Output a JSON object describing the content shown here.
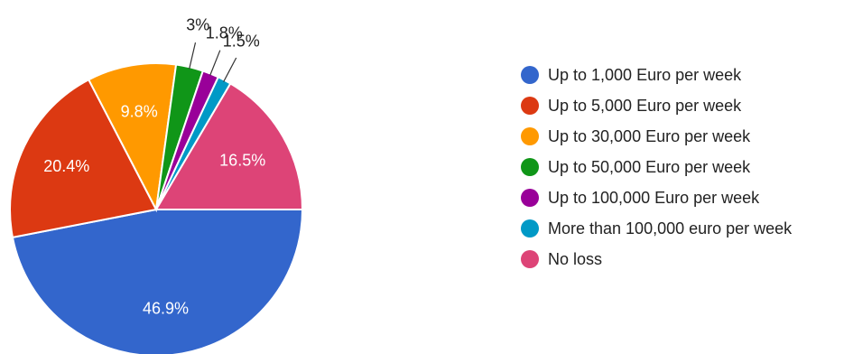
{
  "chart_data": {
    "type": "pie",
    "title": "",
    "slices": [
      {
        "label": "Up to 1,000 Euro per week",
        "value": 46.9,
        "value_label": "46.9%",
        "color": "#3366cc"
      },
      {
        "label": "Up to 5,000 Euro per week",
        "value": 20.4,
        "value_label": "20.4%",
        "color": "#dc3912"
      },
      {
        "label": "Up to 30,000 Euro per week",
        "value": 9.8,
        "value_label": "9.8%",
        "color": "#ff9900"
      },
      {
        "label": "Up to 50,000 Euro per week",
        "value": 3,
        "value_label": "3%",
        "color": "#109618"
      },
      {
        "label": "Up to 100,000 Euro per week",
        "value": 1.8,
        "value_label": "1.8%",
        "color": "#990099"
      },
      {
        "label": "More than 100,000 euro per week",
        "value": 1.5,
        "value_label": "1.5%",
        "color": "#0099c6"
      },
      {
        "label": "No loss",
        "value": 16.5,
        "value_label": "16.5%",
        "color": "#dd4477"
      }
    ],
    "legend_position": "right"
  }
}
